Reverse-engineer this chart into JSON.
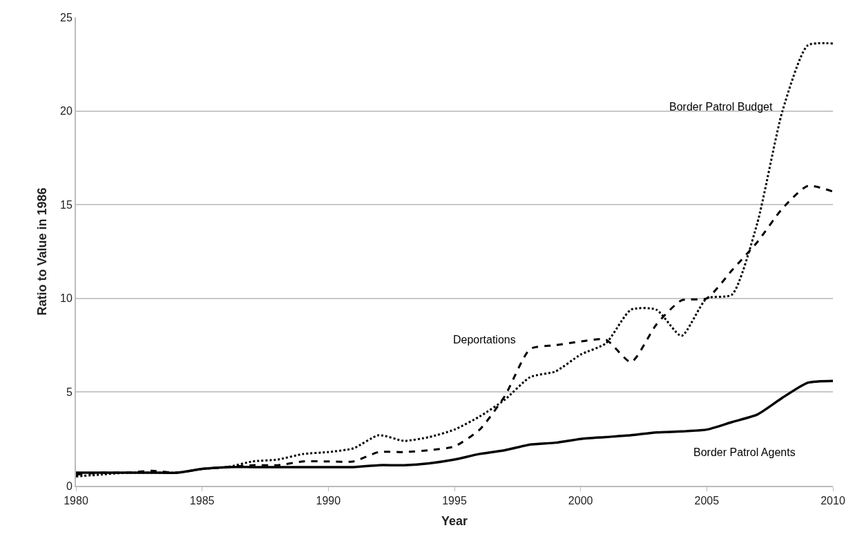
{
  "chart_data": {
    "type": "line",
    "xlabel": "Year",
    "ylabel": "Ratio to Value in 1986",
    "x": [
      1980,
      1981,
      1982,
      1983,
      1984,
      1985,
      1986,
      1987,
      1988,
      1989,
      1990,
      1991,
      1992,
      1993,
      1994,
      1995,
      1996,
      1997,
      1998,
      1999,
      2000,
      2001,
      2002,
      2003,
      2004,
      2005,
      2006,
      2007,
      2008,
      2009,
      2010
    ],
    "series": [
      {
        "name": "Border Patrol Agents",
        "color": "#000000",
        "line_style": "solid",
        "values": [
          0.7,
          0.7,
          0.7,
          0.7,
          0.7,
          0.9,
          1.0,
          1.0,
          1.0,
          1.0,
          1.0,
          1.0,
          1.1,
          1.1,
          1.2,
          1.4,
          1.7,
          1.9,
          2.2,
          2.3,
          2.5,
          2.6,
          2.7,
          2.85,
          2.9,
          3.0,
          3.4,
          3.8,
          4.7,
          5.5,
          5.6
        ]
      },
      {
        "name": "Deportations",
        "color": "#000000",
        "line_style": "dashed",
        "values": [
          0.6,
          0.7,
          0.7,
          0.8,
          0.7,
          0.9,
          1.0,
          1.1,
          1.1,
          1.3,
          1.3,
          1.3,
          1.8,
          1.8,
          1.9,
          2.1,
          3.0,
          4.8,
          7.3,
          7.5,
          7.7,
          7.8,
          6.6,
          8.6,
          9.9,
          10.0,
          11.5,
          13.0,
          14.8,
          16.0,
          15.7
        ]
      },
      {
        "name": "Border Patrol Budget",
        "color": "#000000",
        "line_style": "dotted",
        "values": [
          0.5,
          0.6,
          0.7,
          0.7,
          0.7,
          0.9,
          1.0,
          1.3,
          1.4,
          1.7,
          1.8,
          2.0,
          2.7,
          2.4,
          2.6,
          3.0,
          3.7,
          4.6,
          5.8,
          6.1,
          7.0,
          7.6,
          9.4,
          9.4,
          8.0,
          10.0,
          10.2,
          14.0,
          20.0,
          23.5,
          23.6
        ]
      }
    ],
    "xlim": [
      1980,
      2010
    ],
    "xticks": [
      1980,
      1985,
      1990,
      1995,
      2000,
      2005,
      2010
    ],
    "ylim": [
      0,
      25
    ],
    "yticks": [
      0,
      5,
      10,
      15,
      20,
      25
    ],
    "grid": "y",
    "legend": false,
    "marker": "none"
  }
}
